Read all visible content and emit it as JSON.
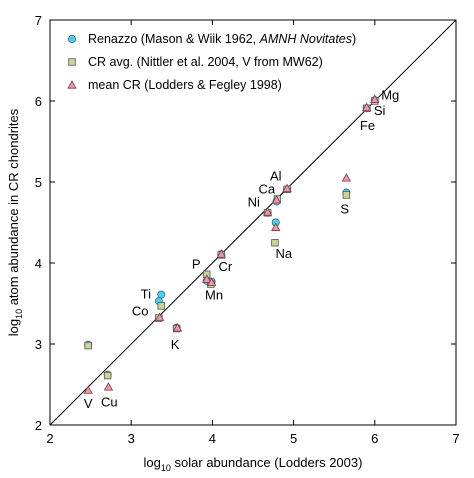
{
  "chart_data": {
    "type": "scatter",
    "xlim": [
      2,
      7
    ],
    "ylim": [
      2,
      7
    ],
    "x_ticks": [
      "2",
      "3",
      "4",
      "5",
      "6",
      "7"
    ],
    "y_ticks": [
      "2",
      "3",
      "4",
      "5",
      "6",
      "7"
    ],
    "xlabel_log": "log",
    "xlabel_sub": "10",
    "xlabel_rest": " solar abundance (Lodders 2003)",
    "ylabel_log": "log",
    "ylabel_sub": "10",
    "ylabel_rest": " atom abundance in CR chondrites",
    "reference_line": {
      "x": [
        2,
        7
      ],
      "y": [
        2,
        7
      ]
    },
    "legend_position": "top-left",
    "grid": false,
    "series": [
      {
        "name_plain": "Renazzo (Mason & Wiik 1962, ",
        "name_italic": "AMNH Novitates",
        "name_tail": ")",
        "marker": "circle",
        "color": "#55ccee",
        "points": [
          {
            "x": 2.47,
            "y": 2.99
          },
          {
            "x": 2.71,
            "y": 2.62
          },
          {
            "x": 3.37,
            "y": 3.61
          },
          {
            "x": 3.34,
            "y": 3.53
          },
          {
            "x": 3.56,
            "y": 3.2
          },
          {
            "x": 3.93,
            "y": 3.78
          },
          {
            "x": 3.99,
            "y": 3.77
          },
          {
            "x": 4.11,
            "y": 4.11
          },
          {
            "x": 4.68,
            "y": 4.62
          },
          {
            "x": 4.78,
            "y": 4.5
          },
          {
            "x": 4.79,
            "y": 4.76
          },
          {
            "x": 4.92,
            "y": 4.91
          },
          {
            "x": 5.65,
            "y": 4.87
          },
          {
            "x": 5.9,
            "y": 5.91
          },
          {
            "x": 6.0,
            "y": 6.01
          }
        ]
      },
      {
        "name_plain": "CR avg. (Nittler et al. 2004, V from MW62)",
        "marker": "square",
        "color": "#c8d4a0",
        "points": [
          {
            "x": 2.47,
            "y": 2.98
          },
          {
            "x": 2.71,
            "y": 2.61
          },
          {
            "x": 3.37,
            "y": 3.47
          },
          {
            "x": 3.34,
            "y": 3.32
          },
          {
            "x": 3.56,
            "y": 3.19
          },
          {
            "x": 3.93,
            "y": 3.86
          },
          {
            "x": 3.98,
            "y": 3.74
          },
          {
            "x": 4.11,
            "y": 4.1
          },
          {
            "x": 4.68,
            "y": 4.62
          },
          {
            "x": 4.77,
            "y": 4.25
          },
          {
            "x": 4.8,
            "y": 4.79
          },
          {
            "x": 4.92,
            "y": 4.91
          },
          {
            "x": 5.65,
            "y": 4.84
          },
          {
            "x": 5.9,
            "y": 5.91
          },
          {
            "x": 6.0,
            "y": 6.0
          }
        ]
      },
      {
        "name_plain": "mean CR (Lodders & Fegley 1998)",
        "marker": "triangle",
        "color": "#e89aa8",
        "points": [
          {
            "x": 2.47,
            "y": 2.43
          },
          {
            "x": 2.72,
            "y": 2.47
          },
          {
            "x": 3.35,
            "y": 3.33
          },
          {
            "x": 3.57,
            "y": 3.2
          },
          {
            "x": 3.93,
            "y": 3.8
          },
          {
            "x": 3.99,
            "y": 3.76
          },
          {
            "x": 4.11,
            "y": 4.11
          },
          {
            "x": 4.68,
            "y": 4.63
          },
          {
            "x": 4.78,
            "y": 4.44
          },
          {
            "x": 4.79,
            "y": 4.78
          },
          {
            "x": 4.92,
            "y": 4.92
          },
          {
            "x": 5.65,
            "y": 5.05
          },
          {
            "x": 5.9,
            "y": 5.92
          },
          {
            "x": 6.0,
            "y": 6.02
          }
        ]
      }
    ],
    "point_labels": [
      {
        "text": "Mg",
        "x": 6.19,
        "y": 6.02
      },
      {
        "text": "Si",
        "x": 6.06,
        "y": 5.83
      },
      {
        "text": "Fe",
        "x": 5.91,
        "y": 5.64
      },
      {
        "text": "Al",
        "x": 4.78,
        "y": 5.02
      },
      {
        "text": "Ca",
        "x": 4.67,
        "y": 4.86
      },
      {
        "text": "Ni",
        "x": 4.51,
        "y": 4.7
      },
      {
        "text": "S",
        "x": 5.63,
        "y": 4.61
      },
      {
        "text": "Na",
        "x": 4.88,
        "y": 4.06
      },
      {
        "text": "P",
        "x": 3.8,
        "y": 3.93
      },
      {
        "text": "Cr",
        "x": 4.16,
        "y": 3.9
      },
      {
        "text": "Mn",
        "x": 4.02,
        "y": 3.55
      },
      {
        "text": "Ti",
        "x": 3.18,
        "y": 3.56
      },
      {
        "text": "Co",
        "x": 3.11,
        "y": 3.35
      },
      {
        "text": "K",
        "x": 3.54,
        "y": 2.94
      },
      {
        "text": "V",
        "x": 2.47,
        "y": 2.21
      },
      {
        "text": "Cu",
        "x": 2.73,
        "y": 2.23
      }
    ]
  }
}
